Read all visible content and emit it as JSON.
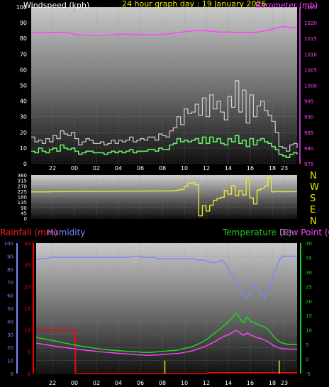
{
  "header": {
    "title": "24 hour graph day : 19 January 2026",
    "top_left_label": "Windspeed (kph)",
    "top_right_label": "Barometer (mb)"
  },
  "colors": {
    "background": "#000000",
    "windspeed": "#ffffff",
    "gust": "#d0d0d0",
    "average_wind": "#66ee66",
    "barometer": "#ff44ff",
    "direction": "#e8e830",
    "rainfall": "#ff0000",
    "humidity": "#7a86ff",
    "temperature": "#22cc22",
    "dewpoint": "#ff44ff",
    "title": "#e8e800",
    "tick_text": "#ffffff"
  },
  "direction_labels": [
    "N",
    "W",
    "S",
    "E",
    "N"
  ],
  "bottom_labels": {
    "rainfall": "Rainfall (mm)",
    "humidity": "Humidity",
    "temperature": "Temperature (C)",
    "dewpoint": "Dew Point (C)"
  },
  "chart_data": [
    {
      "type": "line",
      "name": "wind-barometer",
      "title": "24 hour graph day : 19 January 2026",
      "x_ticks": [
        "22",
        "00",
        "02",
        "04",
        "06",
        "08",
        "10",
        "12",
        "14",
        "16",
        "18",
        "23"
      ],
      "left_axis": {
        "label": "Windspeed (kph)",
        "ylim": [
          0,
          100
        ],
        "ticks": [
          0,
          10,
          20,
          30,
          40,
          50,
          60,
          70,
          80,
          90,
          100
        ]
      },
      "right_axis": {
        "label": "Barometer (mb)",
        "ylim": [
          975,
          1025
        ],
        "ticks": [
          975,
          980,
          985,
          990,
          995,
          1000,
          1005,
          1010,
          1015,
          1020,
          1025
        ]
      },
      "series": [
        {
          "key": "gust",
          "axis": "left",
          "values": [
            17,
            14,
            15,
            13,
            16,
            14,
            18,
            16,
            21,
            19,
            18,
            20,
            16,
            12,
            14,
            16,
            15,
            13,
            13,
            14,
            12,
            13,
            15,
            13,
            15,
            14,
            15,
            17,
            14,
            15,
            16,
            15,
            17,
            17,
            15,
            19,
            18,
            17,
            21,
            23,
            30,
            25,
            35,
            32,
            33,
            38,
            31,
            42,
            30,
            44,
            35,
            40,
            33,
            28,
            43,
            36,
            53,
            33,
            47,
            26,
            44,
            30,
            37,
            40,
            34,
            31,
            27,
            20,
            11,
            10,
            8,
            12,
            13,
            10
          ]
        },
        {
          "key": "average",
          "axis": "left",
          "values": [
            8,
            7,
            10,
            8,
            7,
            9,
            10,
            8,
            12,
            10,
            9,
            10,
            8,
            6,
            7,
            8,
            8,
            7,
            7,
            7,
            6,
            7,
            8,
            7,
            8,
            7,
            8,
            9,
            7,
            8,
            8,
            8,
            9,
            9,
            8,
            10,
            9,
            9,
            12,
            13,
            16,
            14,
            15,
            14,
            15,
            16,
            13,
            17,
            13,
            17,
            14,
            16,
            13,
            12,
            16,
            14,
            18,
            13,
            15,
            11,
            16,
            12,
            15,
            16,
            14,
            13,
            11,
            9,
            6,
            5,
            4,
            6,
            7,
            6
          ]
        },
        {
          "key": "barometer",
          "axis": "right",
          "values": [
            1016.8,
            1016.8,
            1016.8,
            1016.8,
            1016.8,
            1016.9,
            1016.9,
            1016.9,
            1016.9,
            1016.9,
            1016.9,
            1016.6,
            1016.3,
            1016.1,
            1016.0,
            1016.0,
            1015.9,
            1015.9,
            1015.9,
            1015.9,
            1016.0,
            1016.0,
            1016.1,
            1016.3,
            1016.3,
            1016.3,
            1016.4,
            1016.3,
            1016.3,
            1016.3,
            1016.2,
            1016.2,
            1016.1,
            1016.1,
            1016.1,
            1016.2,
            1016.3,
            1016.4,
            1016.5,
            1016.7,
            1016.8,
            1016.9,
            1017.1,
            1017.2,
            1017.3,
            1017.4,
            1017.5,
            1017.5,
            1017.4,
            1017.3,
            1017.2,
            1017.1,
            1017.0,
            1017.0,
            1017.0,
            1017.0,
            1016.9,
            1016.9,
            1016.9,
            1016.9,
            1016.9,
            1016.9,
            1017.0,
            1017.2,
            1017.4,
            1017.6,
            1017.9,
            1018.2,
            1018.5,
            1018.8,
            1018.8,
            1018.5,
            1018.4,
            1018.4
          ]
        }
      ]
    },
    {
      "type": "line",
      "name": "wind-direction",
      "x_ticks": [
        "22",
        "00",
        "02",
        "04",
        "06",
        "08",
        "10",
        "12",
        "14",
        "16",
        "18",
        "23"
      ],
      "left_axis": {
        "ylim": [
          0,
          360
        ],
        "ticks": [
          0,
          45,
          90,
          135,
          180,
          225,
          270,
          315,
          360
        ]
      },
      "series": [
        {
          "key": "direction",
          "axis": "left",
          "values": [
            220,
            220,
            220,
            220,
            220,
            221,
            222,
            222,
            222,
            223,
            223,
            223,
            224,
            224,
            224,
            224,
            224,
            224,
            224,
            225,
            225,
            225,
            225,
            226,
            226,
            226,
            226,
            226,
            226,
            226,
            227,
            227,
            227,
            227,
            227,
            228,
            228,
            228,
            228,
            230,
            235,
            240,
            265,
            292,
            295,
            280,
            20,
            105,
            60,
            110,
            150,
            165,
            175,
            230,
            200,
            270,
            190,
            230,
            195,
            330,
            170,
            120,
            235,
            250,
            270,
            340,
            220,
            225,
            222,
            222,
            222,
            222,
            222,
            222
          ]
        }
      ]
    },
    {
      "type": "line",
      "name": "temperature-humidity-rain",
      "x_ticks": [
        "22",
        "00",
        "02",
        "04",
        "06",
        "08",
        "10",
        "12",
        "14",
        "16",
        "18",
        "23"
      ],
      "left_axis": {
        "label": "Humidity",
        "ylim": [
          0,
          100
        ],
        "ticks": [
          0,
          10,
          20,
          30,
          40,
          50,
          60,
          70,
          80,
          90,
          100
        ]
      },
      "rain_axis": {
        "label": "Rainfall (mm)",
        "ylim": [
          0,
          30
        ],
        "ticks": [
          0,
          5,
          10,
          15,
          20,
          25,
          30
        ]
      },
      "right_axis": {
        "label": "Temperature (C)",
        "ylim": [
          -5,
          40
        ],
        "ticks": [
          -5,
          0,
          5,
          10,
          15,
          20,
          25,
          30,
          35,
          40
        ]
      },
      "series": [
        {
          "key": "humidity",
          "axis": "left",
          "values": [
            87,
            88,
            88,
            88,
            89,
            89,
            89,
            89,
            89,
            89,
            89,
            89,
            89,
            89,
            89,
            89,
            89,
            89,
            89,
            89,
            89,
            89,
            89,
            89,
            89,
            89,
            89,
            90,
            90,
            90,
            89,
            89,
            89,
            89,
            88,
            88,
            88,
            88,
            88,
            88,
            88,
            88,
            88,
            88,
            88,
            87,
            87,
            87,
            86,
            85,
            85,
            86,
            87,
            84,
            80,
            75,
            70,
            65,
            60,
            58,
            62,
            68,
            65,
            60,
            58,
            65,
            72,
            80,
            87,
            90,
            90,
            90,
            90,
            90
          ]
        },
        {
          "key": "rainfall",
          "axis": "rain",
          "values": [
            10,
            10,
            10,
            10,
            10,
            10,
            10,
            10,
            10,
            10,
            10,
            0,
            0,
            0,
            0,
            0,
            0,
            0,
            0,
            0,
            0,
            0,
            0,
            0,
            0,
            0,
            0,
            0,
            0,
            0,
            0,
            0,
            0,
            0,
            0,
            0,
            0,
            0,
            0,
            0,
            0,
            0,
            0,
            0,
            0,
            0,
            0,
            0,
            0.2,
            0.2,
            0.2,
            0.2,
            0.2,
            0.2,
            0.2,
            0.2,
            0.2,
            0.2,
            0.2,
            0.2,
            0.2,
            0.2,
            0.2,
            0.2,
            0.2,
            0.2,
            0.2,
            0.2,
            0.2,
            0.2,
            0.2,
            0.2,
            0.2,
            0.2
          ]
        },
        {
          "key": "temperature",
          "axis": "right",
          "values": [
            7.5,
            7.2,
            7.0,
            6.8,
            6.5,
            6.3,
            6.0,
            5.8,
            5.5,
            5.3,
            5.0,
            4.8,
            4.6,
            4.4,
            4.2,
            4.0,
            3.8,
            3.6,
            3.4,
            3.3,
            3.2,
            3.1,
            3.0,
            2.9,
            2.8,
            2.7,
            2.6,
            2.5,
            2.5,
            2.4,
            2.3,
            2.3,
            2.3,
            2.4,
            2.5,
            2.6,
            2.7,
            2.8,
            2.9,
            3.0,
            3.2,
            3.5,
            3.8,
            4.0,
            4.5,
            5.0,
            5.6,
            6.2,
            7.0,
            8.0,
            9.0,
            10.0,
            11.0,
            12.0,
            13.0,
            14.5,
            16.0,
            14.0,
            12.5,
            14.5,
            13.0,
            12.5,
            12.0,
            11.5,
            11.0,
            10.0,
            8.5,
            7.0,
            6.0,
            5.5,
            5.2,
            5.0,
            5.0,
            5.0
          ]
        },
        {
          "key": "dewpoint",
          "axis": "right",
          "values": [
            5.5,
            5.3,
            5.1,
            4.9,
            4.7,
            4.5,
            4.3,
            4.1,
            4.0,
            3.8,
            3.6,
            3.5,
            3.3,
            3.2,
            3.0,
            2.9,
            2.8,
            2.6,
            2.5,
            2.4,
            2.3,
            2.2,
            2.1,
            2.0,
            1.9,
            1.8,
            1.7,
            1.6,
            1.5,
            1.4,
            1.4,
            1.3,
            1.3,
            1.4,
            1.4,
            1.5,
            1.6,
            1.7,
            1.8,
            1.9,
            2.0,
            2.2,
            2.4,
            2.6,
            3.0,
            3.4,
            3.8,
            4.2,
            4.8,
            5.4,
            6.0,
            6.8,
            7.5,
            8.0,
            8.5,
            9.3,
            10.0,
            9.0,
            8.2,
            9.0,
            8.3,
            7.8,
            7.3,
            7.0,
            6.5,
            5.8,
            5.0,
            4.3,
            3.8,
            3.5,
            3.5,
            3.4,
            3.4,
            3.4
          ]
        }
      ],
      "rain_tips": [
        {
          "x": 36,
          "y": 3
        },
        {
          "x": 68,
          "y": 3
        }
      ]
    }
  ]
}
